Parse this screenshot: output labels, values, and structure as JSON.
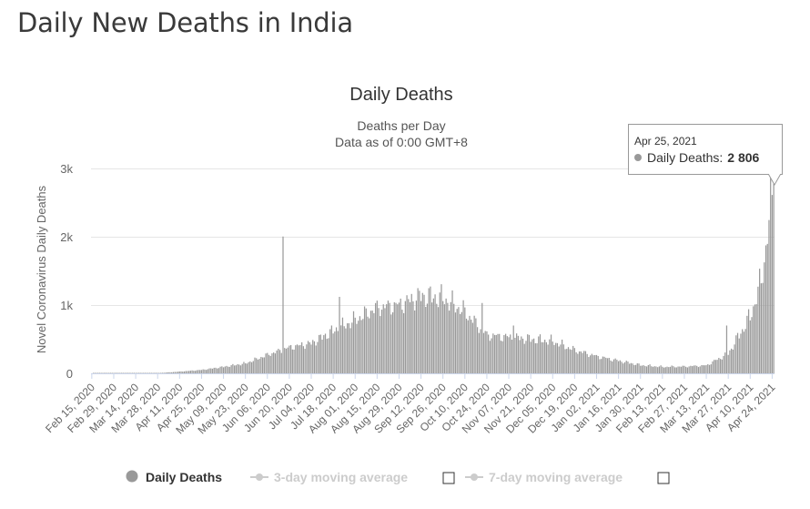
{
  "page": {
    "title": "Daily New Deaths in India"
  },
  "chart_data": {
    "type": "bar",
    "title": "Daily Deaths",
    "subtitle_line1": "Deaths per Day",
    "subtitle_line2": "Data as of 0:00 GMT+8",
    "ylabel": "Novel Coronavirus Daily Deaths",
    "ylim": [
      0,
      3000
    ],
    "yticks": [
      {
        "value": 0,
        "label": "0"
      },
      {
        "value": 1000,
        "label": "1k"
      },
      {
        "value": 2000,
        "label": "2k"
      },
      {
        "value": 3000,
        "label": "3k"
      }
    ],
    "xtick_labels": [
      "Feb 15, 2020",
      "Feb 29, 2020",
      "Mar 14, 2020",
      "Mar 28, 2020",
      "Apr 11, 2020",
      "Apr 25, 2020",
      "May 09, 2020",
      "May 23, 2020",
      "Jun 06, 2020",
      "Jun 20, 2020",
      "Jul 04, 2020",
      "Jul 18, 2020",
      "Aug 01, 2020",
      "Aug 15, 2020",
      "Aug 29, 2020",
      "Sep 12, 2020",
      "Sep 26, 2020",
      "Oct 10, 2020",
      "Oct 24, 2020",
      "Nov 07, 2020",
      "Nov 21, 2020",
      "Dec 05, 2020",
      "Dec 19, 2020",
      "Jan 02, 2021",
      "Jan 16, 2021",
      "Jan 30, 2021",
      "Feb 13, 2021",
      "Feb 27, 2021",
      "Mar 13, 2021",
      "Mar 27, 2021",
      "Apr 10, 2021",
      "Apr 24, 2021"
    ],
    "x_start": "Feb 15, 2020",
    "x_end": "Apr 25, 2021",
    "series": [
      {
        "name": "Daily Deaths",
        "color": "#999999",
        "anchor_values": [
          [
            "Feb 15, 2020",
            0
          ],
          [
            "Mar 28, 2020",
            3
          ],
          [
            "Apr 11, 2020",
            25
          ],
          [
            "Apr 25, 2020",
            50
          ],
          [
            "May 09, 2020",
            95
          ],
          [
            "May 23, 2020",
            145
          ],
          [
            "Jun 06, 2020",
            270
          ],
          [
            "Jun 20, 2020",
            380
          ],
          [
            "Jul 04, 2020",
            440
          ],
          [
            "Jul 18, 2020",
            620
          ],
          [
            "Aug 01, 2020",
            780
          ],
          [
            "Aug 15, 2020",
            960
          ],
          [
            "Aug 29, 2020",
            1000
          ],
          [
            "Sep 12, 2020",
            1130
          ],
          [
            "Sep 26, 2020",
            1100
          ],
          [
            "Oct 10, 2020",
            900
          ],
          [
            "Oct 24, 2020",
            560
          ],
          [
            "Nov 07, 2020",
            530
          ],
          [
            "Nov 21, 2020",
            500
          ],
          [
            "Dec 05, 2020",
            470
          ],
          [
            "Dec 19, 2020",
            340
          ],
          [
            "Jan 02, 2021",
            250
          ],
          [
            "Jan 16, 2021",
            185
          ],
          [
            "Jan 30, 2021",
            120
          ],
          [
            "Feb 13, 2021",
            95
          ],
          [
            "Feb 27, 2021",
            100
          ],
          [
            "Mar 13, 2021",
            115
          ],
          [
            "Mar 27, 2021",
            290
          ],
          [
            "Apr 10, 2021",
            830
          ],
          [
            "Apr 17, 2021",
            1340
          ],
          [
            "Apr 21, 2021",
            2030
          ],
          [
            "Apr 25, 2021",
            2806
          ]
        ],
        "spikes": [
          [
            "Jun 16, 2020",
            2003
          ],
          [
            "Jul 22, 2020",
            1120
          ],
          [
            "Oct 21, 2020",
            1030
          ],
          [
            "Nov 10, 2020",
            700
          ],
          [
            "Mar 26, 2021",
            700
          ]
        ]
      },
      {
        "name": "3-day moving average",
        "visible": false
      },
      {
        "name": "7-day moving average",
        "visible": false
      }
    ],
    "tooltip": {
      "date": "Apr 25, 2021",
      "series_label": "Daily Deaths:",
      "value_text": "2 806"
    }
  }
}
